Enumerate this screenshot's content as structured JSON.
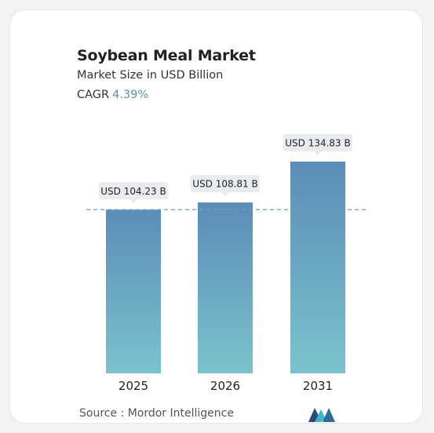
{
  "title": "Soybean Meal Market",
  "subtitle": "Market Size in USD Billion",
  "cagr": {
    "label": "CAGR",
    "value": "4.39%"
  },
  "source": "Source :  Mordor Intelligence",
  "logo_icon": "mordor-intelligence-logo",
  "colors": {
    "bar_top": "#5b8db8",
    "bar_bottom": "#7ac3cc",
    "cagr_value": "#5a8fc8",
    "dashed_line": "#6f9cc4",
    "label_bg": "#e9ecef"
  },
  "chart_data": {
    "type": "bar",
    "categories": [
      "2025",
      "2026",
      "2031"
    ],
    "values": [
      104.23,
      108.81,
      134.83
    ],
    "data_labels": [
      "USD 104.23 B",
      "USD 108.81 B",
      "USD 134.83 B"
    ],
    "ylim": [
      0,
      160
    ],
    "grid": false,
    "reference_line": 104.23,
    "xlabel": "",
    "ylabel": ""
  }
}
